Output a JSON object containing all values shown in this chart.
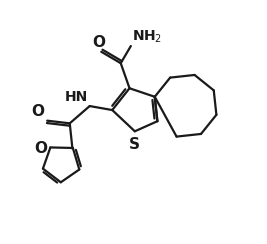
{
  "bg_color": "#ffffff",
  "line_color": "#1a1a1a",
  "line_width": 1.6,
  "figsize": [
    2.67,
    2.44
  ],
  "dpi": 100,
  "xlim": [
    0,
    10
  ],
  "ylim": [
    0,
    9.1
  ]
}
